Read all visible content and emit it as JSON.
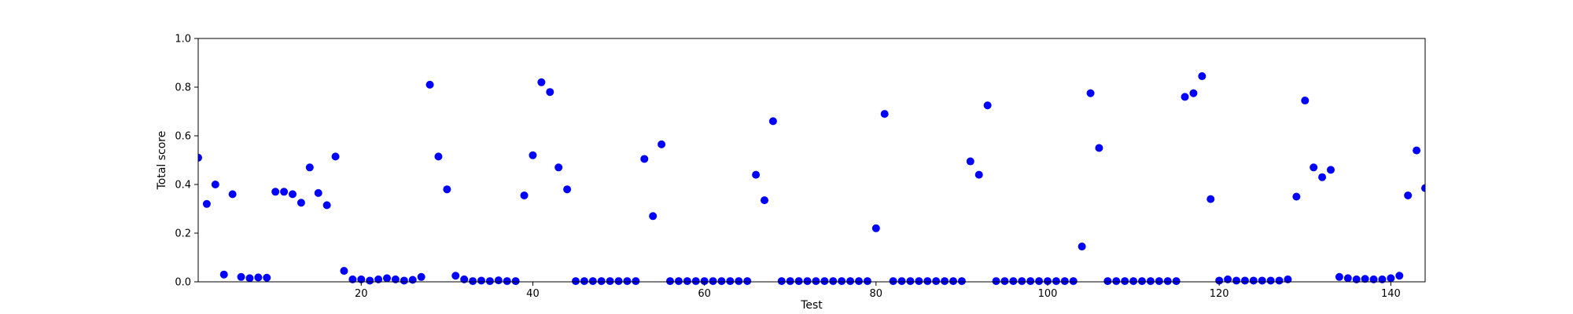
{
  "chart_data": {
    "type": "scatter",
    "title": "",
    "xlabel": "Test",
    "ylabel": "Total score",
    "xlim": [
      1,
      144
    ],
    "ylim": [
      0.0,
      1.0
    ],
    "xticks": [
      20,
      40,
      60,
      80,
      100,
      120,
      140
    ],
    "yticks": [
      0.0,
      0.2,
      0.4,
      0.6,
      0.8,
      1.0
    ],
    "xtick_labels": [
      "20",
      "40",
      "60",
      "80",
      "100",
      "120",
      "140"
    ],
    "ytick_labels": [
      "0.0",
      "0.2",
      "0.4",
      "0.6",
      "0.8",
      "1.0"
    ],
    "grid": false,
    "legend": "none",
    "marker_color": "#0000ff",
    "x": [
      1,
      2,
      3,
      4,
      5,
      6,
      7,
      8,
      9,
      10,
      11,
      12,
      13,
      14,
      15,
      16,
      17,
      18,
      19,
      20,
      21,
      22,
      23,
      24,
      25,
      26,
      27,
      28,
      29,
      30,
      31,
      32,
      33,
      34,
      35,
      36,
      37,
      38,
      39,
      40,
      41,
      42,
      43,
      44,
      45,
      46,
      47,
      48,
      49,
      50,
      51,
      52,
      53,
      54,
      55,
      56,
      57,
      58,
      59,
      60,
      61,
      62,
      63,
      64,
      65,
      66,
      67,
      68,
      69,
      70,
      71,
      72,
      73,
      74,
      75,
      76,
      77,
      78,
      79,
      80,
      81,
      82,
      83,
      84,
      85,
      86,
      87,
      88,
      89,
      90,
      91,
      92,
      93,
      94,
      95,
      96,
      97,
      98,
      99,
      100,
      101,
      102,
      103,
      104,
      105,
      106,
      107,
      108,
      109,
      110,
      111,
      112,
      113,
      114,
      115,
      116,
      117,
      118,
      119,
      120,
      121,
      122,
      123,
      124,
      125,
      126,
      127,
      128,
      129,
      130,
      131,
      132,
      133,
      134,
      135,
      136,
      137,
      138,
      139,
      140,
      141,
      142,
      143,
      144
    ],
    "y": [
      0.51,
      0.32,
      0.4,
      0.03,
      0.36,
      0.02,
      0.015,
      0.018,
      0.017,
      0.37,
      0.37,
      0.36,
      0.325,
      0.47,
      0.365,
      0.315,
      0.515,
      0.045,
      0.01,
      0.01,
      0.005,
      0.01,
      0.015,
      0.01,
      0.005,
      0.008,
      0.02,
      0.81,
      0.515,
      0.38,
      0.025,
      0.01,
      0.003,
      0.005,
      0.003,
      0.006,
      0.003,
      0.003,
      0.355,
      0.52,
      0.82,
      0.78,
      0.47,
      0.38,
      0.003,
      0.003,
      0.003,
      0.003,
      0.003,
      0.003,
      0.003,
      0.003,
      0.505,
      0.27,
      0.565,
      0.003,
      0.003,
      0.003,
      0.003,
      0.003,
      0.003,
      0.003,
      0.003,
      0.003,
      0.003,
      0.44,
      0.335,
      0.66,
      0.003,
      0.003,
      0.003,
      0.003,
      0.003,
      0.003,
      0.003,
      0.003,
      0.003,
      0.003,
      0.003,
      0.22,
      0.69,
      0.003,
      0.003,
      0.003,
      0.003,
      0.003,
      0.003,
      0.003,
      0.003,
      0.003,
      0.495,
      0.44,
      0.725,
      0.003,
      0.003,
      0.003,
      0.003,
      0.003,
      0.003,
      0.003,
      0.003,
      0.003,
      0.003,
      0.145,
      0.775,
      0.55,
      0.003,
      0.003,
      0.003,
      0.003,
      0.003,
      0.003,
      0.003,
      0.003,
      0.003,
      0.76,
      0.775,
      0.845,
      0.34,
      0.005,
      0.01,
      0.005,
      0.005,
      0.005,
      0.005,
      0.005,
      0.005,
      0.01,
      0.35,
      0.745,
      0.47,
      0.43,
      0.46,
      0.02,
      0.015,
      0.01,
      0.012,
      0.01,
      0.01,
      0.015,
      0.025,
      0.355,
      0.54,
      0.385
    ]
  }
}
